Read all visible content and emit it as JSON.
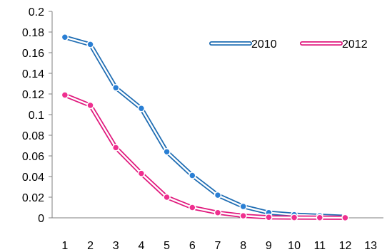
{
  "chart_data": {
    "type": "line",
    "title": "",
    "xlabel": "",
    "ylabel": "",
    "x": [
      1,
      2,
      3,
      4,
      5,
      6,
      7,
      8,
      9,
      10,
      11,
      12,
      13
    ],
    "xlim": [
      0.5,
      13.5
    ],
    "ylim": [
      0,
      0.2
    ],
    "y_ticks": [
      "0",
      "0.02",
      "0.04",
      "0.06",
      "0.08",
      "0.1",
      "0.12",
      "0.14",
      "0.16",
      "0.18",
      "0.2"
    ],
    "x_ticks": [
      "1",
      "2",
      "3",
      "4",
      "5",
      "6",
      "7",
      "8",
      "9",
      "10",
      "11",
      "12",
      "13"
    ],
    "grid": false,
    "legend_position": "top-right",
    "series": [
      {
        "name": "2010",
        "color": "#1f6db3",
        "marker_color": "#2a7fd4",
        "x": [
          1,
          2,
          3,
          4,
          5,
          6,
          7,
          8,
          9,
          10,
          11,
          12
        ],
        "values": [
          0.175,
          0.168,
          0.126,
          0.106,
          0.064,
          0.041,
          0.022,
          0.011,
          0.005,
          0.003,
          0.002,
          0.001
        ]
      },
      {
        "name": "2012",
        "color": "#e0197d",
        "marker_color": "#ef2f8f",
        "x": [
          1,
          2,
          3,
          4,
          5,
          6,
          7,
          8,
          9,
          10,
          11,
          12
        ],
        "values": [
          0.119,
          0.109,
          0.068,
          0.043,
          0.02,
          0.01,
          0.005,
          0.002,
          0.0005,
          0.0003,
          0.0002,
          0.0001
        ]
      }
    ]
  }
}
